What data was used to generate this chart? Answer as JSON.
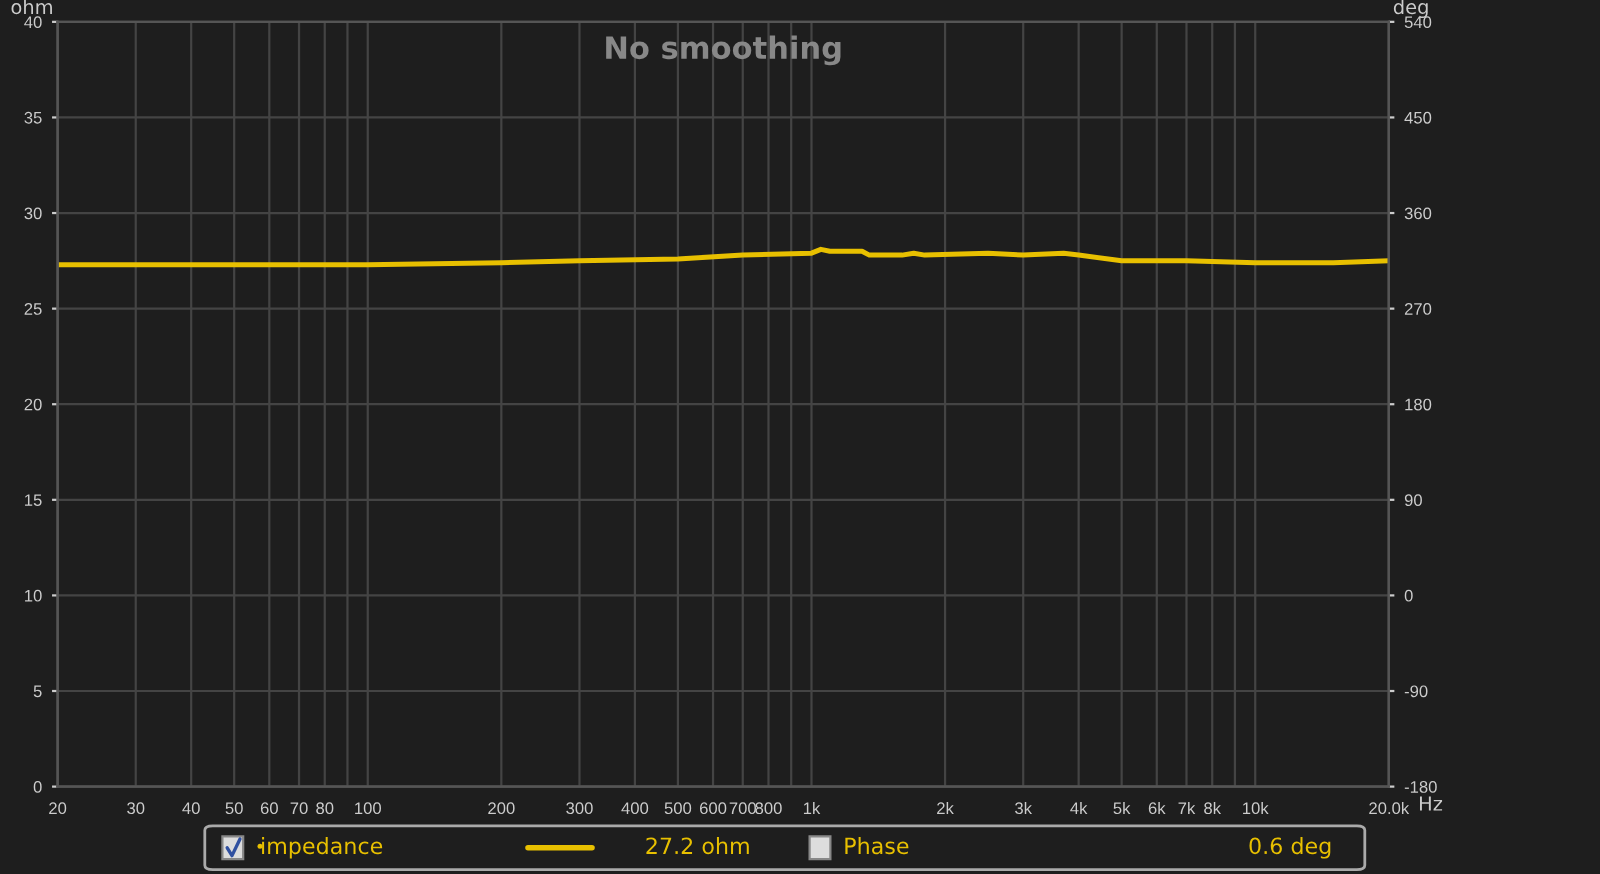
{
  "chart_data": {
    "type": "line",
    "title": "No smoothing",
    "xlabel": "Hz",
    "ylabel": "ohm",
    "y2label": "deg",
    "log": "x",
    "grid": true,
    "legend": "bottom",
    "marker": "none",
    "line_style": "solid",
    "series": [
      {
        "name": "impedance",
        "color": "#e8c000",
        "x": [
          20,
          30,
          50,
          100,
          200,
          300,
          500,
          700,
          1000,
          1050,
          1100,
          1300,
          1350,
          1600,
          1700,
          1800,
          2500,
          3000,
          3700,
          4000,
          5000,
          7000,
          10000,
          15000,
          20000
        ],
        "values": [
          27.3,
          27.3,
          27.3,
          27.3,
          27.4,
          27.5,
          27.6,
          27.8,
          27.9,
          28.1,
          28.0,
          28.0,
          27.8,
          27.8,
          27.9,
          27.8,
          27.9,
          27.8,
          27.9,
          27.8,
          27.5,
          27.5,
          27.4,
          27.4,
          27.5
        ]
      }
    ],
    "xlim": [
      20,
      20000
    ],
    "xticks": [
      20,
      30,
      40,
      50,
      60,
      70,
      80,
      {
        "value": 90,
        "label": null
      },
      100,
      200,
      300,
      400,
      500,
      600,
      700,
      800,
      {
        "value": 900,
        "label": null
      },
      {
        "value": 1000,
        "label": "1k"
      },
      {
        "value": 2000,
        "label": "2k"
      },
      {
        "value": 3000,
        "label": "3k"
      },
      {
        "value": 4000,
        "label": "4k"
      },
      {
        "value": 5000,
        "label": "5k"
      },
      {
        "value": 6000,
        "label": "6k"
      },
      {
        "value": 7000,
        "label": "7k"
      },
      {
        "value": 8000,
        "label": "8k"
      },
      {
        "value": 9000,
        "label": null
      },
      {
        "value": 10000,
        "label": "10k"
      },
      {
        "value": 20000,
        "label": "20.0k"
      }
    ],
    "ylim": [
      0,
      40
    ],
    "yticks": [
      0,
      5,
      10,
      15,
      20,
      25,
      30,
      35,
      40
    ],
    "y2lim": [
      -180,
      540
    ],
    "y2ticks": [
      -180,
      -90,
      0,
      90,
      180,
      270,
      360,
      450,
      540
    ],
    "annotations": [
      "27.2 ohm",
      "Phase",
      "0.6 deg"
    ]
  }
}
